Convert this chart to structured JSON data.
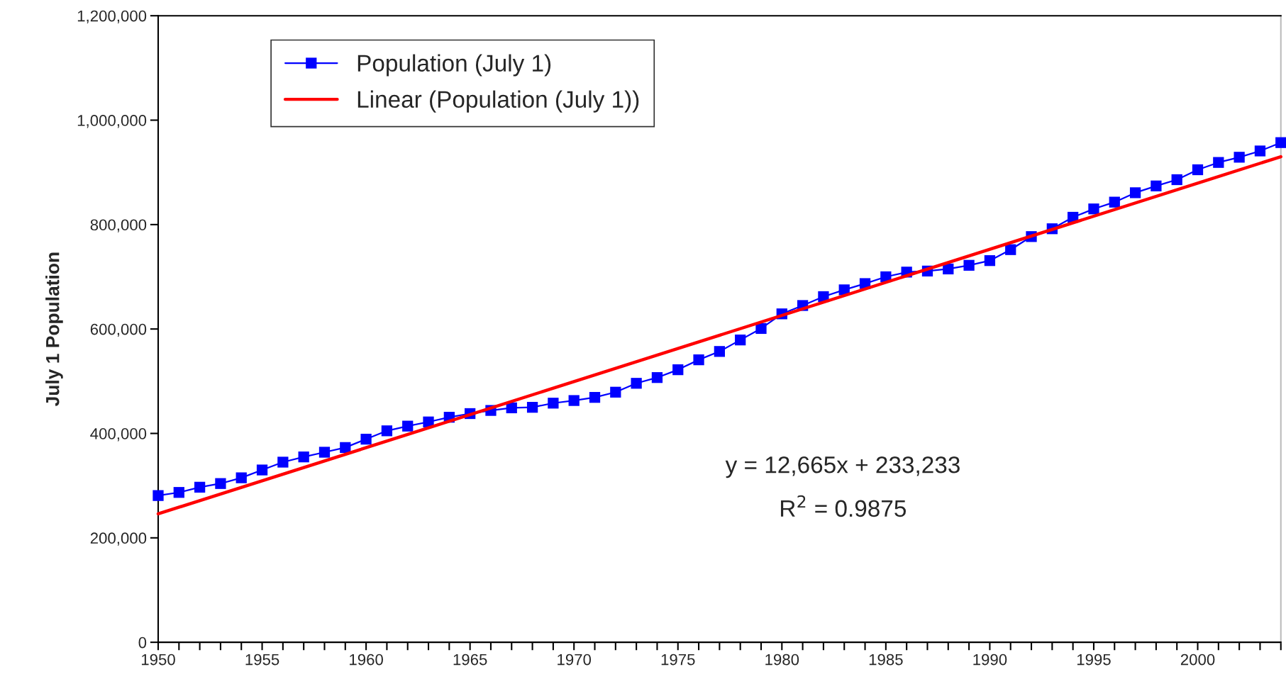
{
  "chart_data": {
    "type": "line",
    "ylabel": "July 1 Population",
    "x": [
      1950,
      1951,
      1952,
      1953,
      1954,
      1955,
      1956,
      1957,
      1958,
      1959,
      1960,
      1961,
      1962,
      1963,
      1964,
      1965,
      1966,
      1967,
      1968,
      1969,
      1970,
      1971,
      1972,
      1973,
      1974,
      1975,
      1976,
      1977,
      1978,
      1979,
      1980,
      1981,
      1982,
      1983,
      1984,
      1985,
      1986,
      1987,
      1988,
      1989,
      1990,
      1991,
      1992,
      1993,
      1994,
      1995,
      1996,
      1997,
      1998,
      1999,
      2000,
      2001,
      2002,
      2003,
      2004
    ],
    "series": [
      {
        "name": "Population (July 1)",
        "color": "#0000ff",
        "marker": "square",
        "values": [
          281000,
          287000,
          297000,
          304000,
          315000,
          330000,
          345000,
          355000,
          364000,
          373000,
          389000,
          405000,
          414000,
          422000,
          431000,
          438000,
          444000,
          449000,
          450000,
          458000,
          463000,
          469000,
          479000,
          496000,
          507000,
          522000,
          541000,
          557000,
          579000,
          601000,
          629000,
          645000,
          662000,
          675000,
          687000,
          700000,
          709000,
          711000,
          715000,
          722000,
          731000,
          752000,
          777000,
          792000,
          814000,
          830000,
          843000,
          861000,
          874000,
          886000,
          905000,
          919000,
          929000,
          941000,
          957000
        ]
      },
      {
        "name": "Linear (Population (July 1))",
        "type": "line",
        "color": "#ff0000",
        "marker": "none",
        "x": [
          1950,
          2004
        ],
        "values": [
          246000,
          930000
        ]
      }
    ],
    "xlim": [
      1950,
      2004
    ],
    "xticks": [
      1950,
      {
        "value": 1951,
        "label": null
      },
      {
        "value": 1952,
        "label": null
      },
      {
        "value": 1953,
        "label": null
      },
      {
        "value": 1954,
        "label": null
      },
      1955,
      {
        "value": 1956,
        "label": null
      },
      {
        "value": 1957,
        "label": null
      },
      {
        "value": 1958,
        "label": null
      },
      {
        "value": 1959,
        "label": null
      },
      1960,
      {
        "value": 1961,
        "label": null
      },
      {
        "value": 1962,
        "label": null
      },
      {
        "value": 1963,
        "label": null
      },
      {
        "value": 1964,
        "label": null
      },
      1965,
      {
        "value": 1966,
        "label": null
      },
      {
        "value": 1967,
        "label": null
      },
      {
        "value": 1968,
        "label": null
      },
      {
        "value": 1969,
        "label": null
      },
      1970,
      {
        "value": 1971,
        "label": null
      },
      {
        "value": 1972,
        "label": null
      },
      {
        "value": 1973,
        "label": null
      },
      {
        "value": 1974,
        "label": null
      },
      1975,
      {
        "value": 1976,
        "label": null
      },
      {
        "value": 1977,
        "label": null
      },
      {
        "value": 1978,
        "label": null
      },
      {
        "value": 1979,
        "label": null
      },
      1980,
      {
        "value": 1981,
        "label": null
      },
      {
        "value": 1982,
        "label": null
      },
      {
        "value": 1983,
        "label": null
      },
      {
        "value": 1984,
        "label": null
      },
      1985,
      {
        "value": 1986,
        "label": null
      },
      {
        "value": 1987,
        "label": null
      },
      {
        "value": 1988,
        "label": null
      },
      {
        "value": 1989,
        "label": null
      },
      1990,
      {
        "value": 1991,
        "label": null
      },
      {
        "value": 1992,
        "label": null
      },
      {
        "value": 1993,
        "label": null
      },
      {
        "value": 1994,
        "label": null
      },
      1995,
      {
        "value": 1996,
        "label": null
      },
      {
        "value": 1997,
        "label": null
      },
      {
        "value": 1998,
        "label": null
      },
      {
        "value": 1999,
        "label": null
      },
      2000,
      {
        "value": 2001,
        "label": null
      },
      {
        "value": 2002,
        "label": null
      },
      {
        "value": 2003,
        "label": null
      },
      {
        "value": 2004,
        "label": null
      }
    ],
    "ylim": [
      0,
      1200000
    ],
    "yticks": [
      0,
      {
        "value": 200000,
        "label": "200,000"
      },
      {
        "value": 400000,
        "label": "400,000"
      },
      {
        "value": 600000,
        "label": "600,000"
      },
      {
        "value": 800000,
        "label": "800,000"
      },
      {
        "value": 1000000,
        "label": "1,000,000"
      },
      {
        "value": 1200000,
        "label": "1,200,000"
      }
    ],
    "annotations": [
      "y = 12,665x + 233,233",
      "R$^{2}$ = 0.9875"
    ],
    "grid": false,
    "legend": "top left",
    "line_style": "solid"
  }
}
